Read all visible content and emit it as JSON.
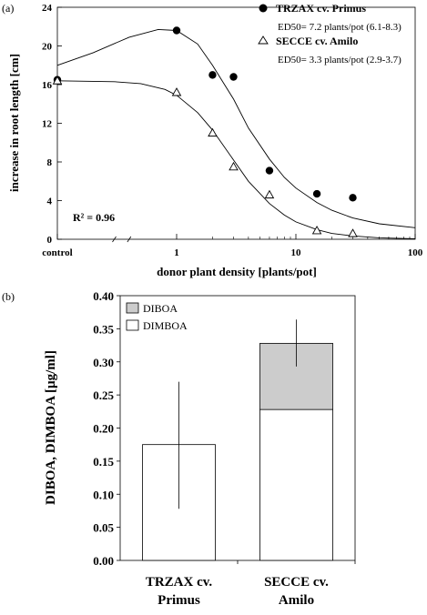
{
  "chart_data": [
    {
      "panel_label": "(a)",
      "type": "scatter",
      "xlabel": "donor plant density [plants/pot]",
      "ylabel": "increase in root length [cm]",
      "x_scale": "log",
      "xlim": [
        0.1,
        100
      ],
      "ylim": [
        0,
        24
      ],
      "x_ticks": [
        {
          "value": 0.1,
          "label": "control"
        },
        {
          "value": 1,
          "label": "1"
        },
        {
          "value": 10,
          "label": "10"
        },
        {
          "value": 100,
          "label": "100"
        }
      ],
      "y_ticks": [
        0,
        4,
        8,
        12,
        16,
        20,
        24
      ],
      "annotation": "R² = 0.96",
      "legend_position": "top-right",
      "series": [
        {
          "name": "TRZAX cv. Primus",
          "marker": "filled-circle",
          "ed50": "ED50= 7.2 plants/pot (6.1-8.3)",
          "points": [
            [
              0.1,
              16.5
            ],
            [
              1,
              21.6
            ],
            [
              2,
              17.0
            ],
            [
              3,
              16.8
            ],
            [
              6,
              7.1
            ],
            [
              15,
              4.7
            ],
            [
              30,
              4.3
            ]
          ],
          "curve": [
            [
              0.1,
              18.0
            ],
            [
              0.2,
              19.3
            ],
            [
              0.4,
              20.9
            ],
            [
              0.7,
              21.7
            ],
            [
              1,
              21.6
            ],
            [
              1.5,
              20.2
            ],
            [
              2,
              18.0
            ],
            [
              3,
              14.5
            ],
            [
              4,
              11.5
            ],
            [
              6,
              8.3
            ],
            [
              8,
              6.4
            ],
            [
              10,
              5.3
            ],
            [
              15,
              3.8
            ],
            [
              20,
              3.0
            ],
            [
              30,
              2.2
            ],
            [
              50,
              1.6
            ],
            [
              100,
              1.2
            ]
          ]
        },
        {
          "name": "SECCE cv. Amilo",
          "marker": "open-triangle",
          "ed50": "ED50= 3.3 plants/pot (2.9-3.7)",
          "points": [
            [
              0.1,
              16.4
            ],
            [
              1,
              15.2
            ],
            [
              2,
              11.0
            ],
            [
              3,
              7.5
            ],
            [
              6,
              4.6
            ],
            [
              15,
              0.9
            ],
            [
              30,
              0.6
            ]
          ],
          "curve": [
            [
              0.1,
              16.4
            ],
            [
              0.3,
              16.3
            ],
            [
              0.5,
              16.1
            ],
            [
              0.8,
              15.5
            ],
            [
              1,
              14.9
            ],
            [
              1.5,
              13.1
            ],
            [
              2,
              11.3
            ],
            [
              3,
              8.2
            ],
            [
              4,
              6.0
            ],
            [
              6,
              3.7
            ],
            [
              8,
              2.5
            ],
            [
              10,
              1.8
            ],
            [
              15,
              1.0
            ],
            [
              20,
              0.6
            ],
            [
              30,
              0.35
            ],
            [
              50,
              0.15
            ],
            [
              100,
              0.05
            ]
          ]
        }
      ]
    },
    {
      "panel_label": "(b)",
      "type": "bar",
      "stacked": true,
      "ylabel": "DIBOA, DIMBOA [µg/ml]",
      "ylim": [
        0,
        0.4
      ],
      "y_ticks": [
        "0.00",
        "0.05",
        "0.10",
        "0.15",
        "0.20",
        "0.25",
        "0.30",
        "0.35",
        "0.40"
      ],
      "categories": [
        {
          "line1": "TRZAX cv.",
          "line2": "Primus"
        },
        {
          "line1": "SECCE cv.",
          "line2": "Amilo"
        }
      ],
      "legend_position": "top-left",
      "series": [
        {
          "name": "DIMBOA",
          "color": "#ffffff",
          "values": [
            0.175,
            0.228
          ]
        },
        {
          "name": "DIBOA",
          "color": "#cccccc",
          "values": [
            0.0,
            0.1
          ]
        }
      ],
      "error_bars": [
        {
          "low": 0.078,
          "high": 0.27
        },
        {
          "low": 0.293,
          "high": 0.364
        }
      ]
    }
  ]
}
